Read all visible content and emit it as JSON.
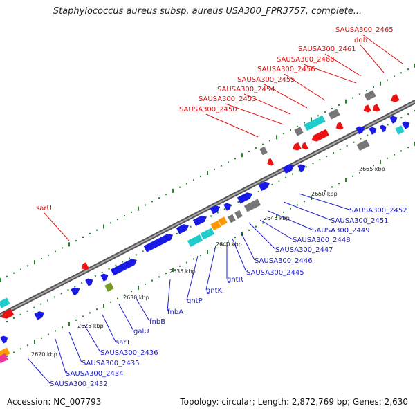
{
  "header": {
    "title": "Staphylococcus aureus subsp. aureus USA300_FPR3757, complete..."
  },
  "footer": {
    "accession": "Accession: NC_007793",
    "summary": "Topology: circular; Length: 2,872,769 bp; Genes: 2,630"
  },
  "colors": {
    "blue": "#1a1ae6",
    "red": "#ee1111",
    "cyan": "#22cccc",
    "gray": "#777777",
    "orange": "#ff9900",
    "olive": "#779922",
    "magenta": "#ee3399",
    "tick": "#228822"
  },
  "ticks": [
    "2620 kbp",
    "2625 kbp",
    "2630 kbp",
    "2635 kbp",
    "2640 kbp",
    "2645 kbp",
    "2650 kbp",
    "2655 kbp"
  ],
  "labels_forward": [
    "sarU",
    "SAUSA300_2450",
    "SAUSA300_2453",
    "SAUSA300_2454",
    "SAUSA300_2455",
    "SAUSA300_2456",
    "SAUSA300_2460",
    "SAUSA300_2461",
    "ddh",
    "SAUSA300_2465"
  ],
  "labels_reverse": [
    "SAUSA300_2432",
    "SAUSA300_2434",
    "SAUSA300_2435",
    "SAUSA300_2436",
    "sarT",
    "galU",
    "fnbB",
    "fnbA",
    "gntP",
    "gntK",
    "gntR",
    "SAUSA300_2445",
    "SAUSA300_2446",
    "SAUSA300_2447",
    "SAUSA300_2448",
    "SAUSA300_2449",
    "SAUSA300_2451",
    "SAUSA300_2452"
  ]
}
